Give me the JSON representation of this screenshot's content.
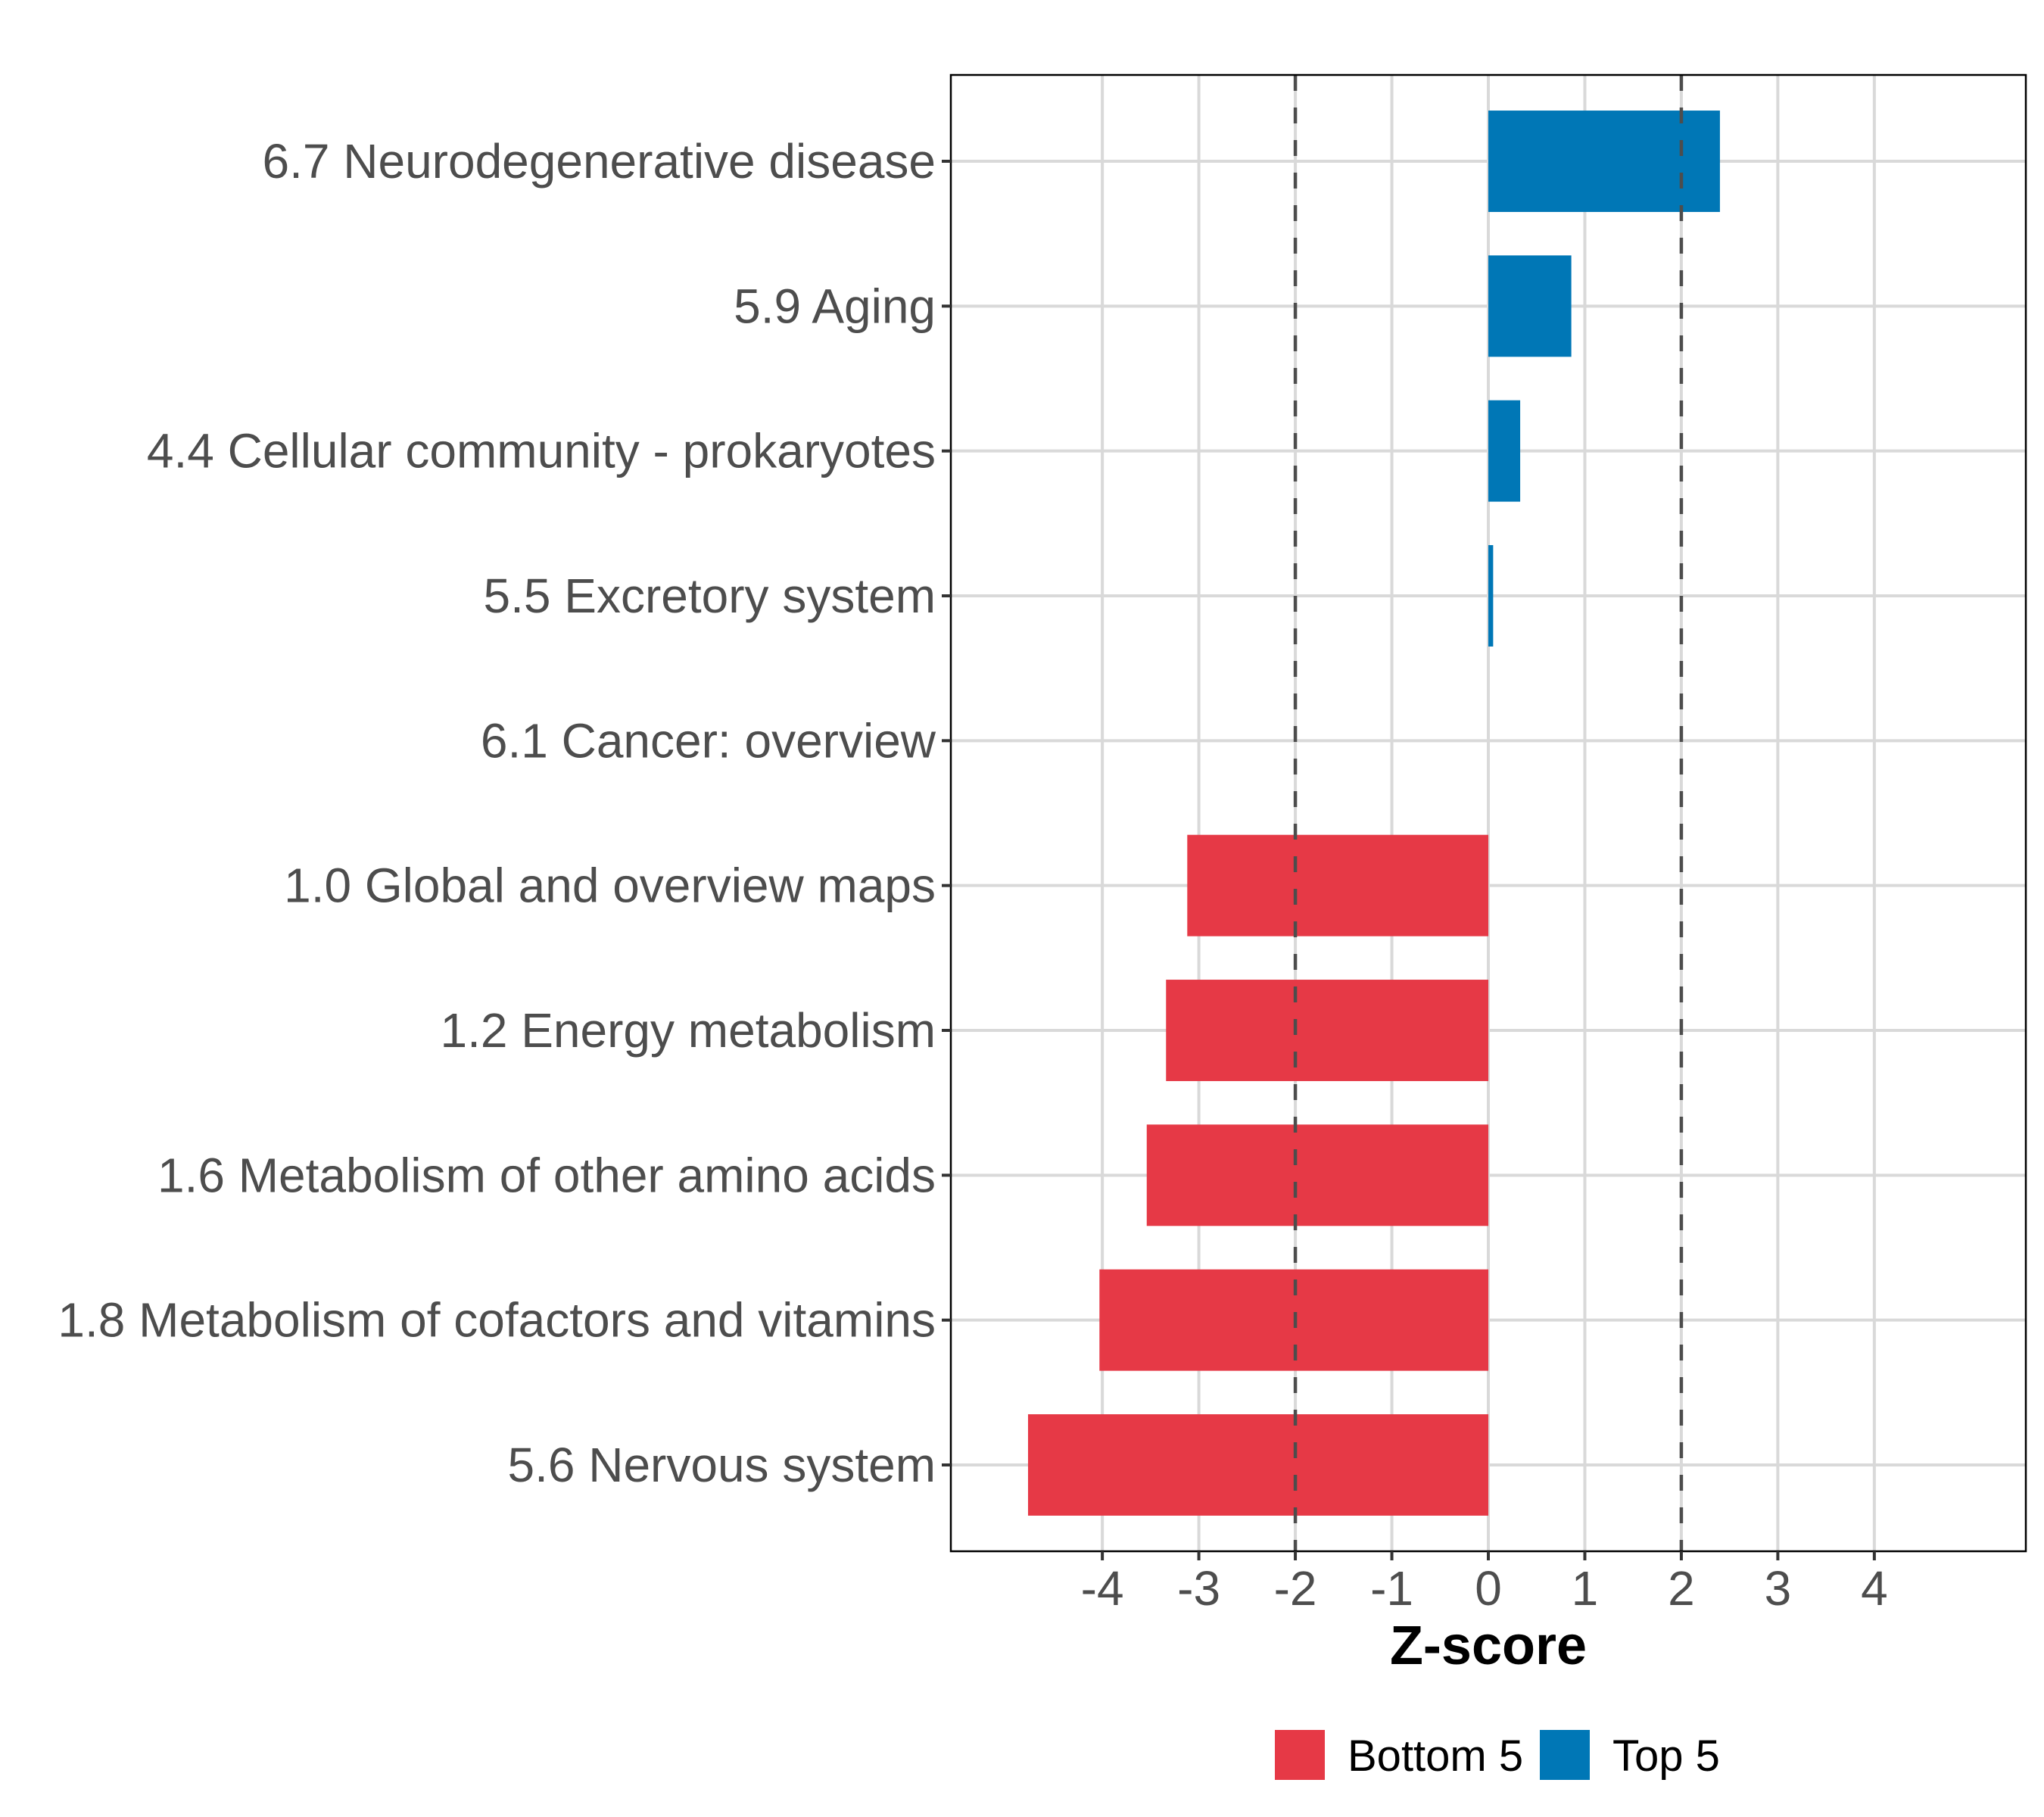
{
  "chart_data": {
    "type": "bar",
    "orientation": "horizontal",
    "title": "",
    "xlabel": "Z-score",
    "ylabel": "",
    "xlim": [
      -5.57,
      5.57
    ],
    "x_ticks": [
      -4,
      -3,
      -2,
      -1,
      0,
      1,
      2,
      3,
      4
    ],
    "x_tick_labels": [
      "-4",
      "-3",
      "-2",
      "-1",
      "0",
      "1",
      "2",
      "3",
      "4"
    ],
    "grid": true,
    "reference_lines": [
      {
        "x": -2,
        "style": "dashed"
      },
      {
        "x": 2,
        "style": "dashed"
      }
    ],
    "categories": [
      "6.7 Neurodegenerative disease",
      "5.9 Aging",
      "4.4 Cellular community - prokaryotes",
      "5.5 Excretory system",
      "6.1 Cancer: overview",
      "1.0 Global and overview maps",
      "1.2 Energy metabolism",
      "1.6 Metabolism of other amino acids",
      "1.8 Metabolism of cofactors and vitamins",
      "5.6 Nervous system"
    ],
    "values": [
      2.4,
      0.86,
      0.33,
      0.05,
      0.0,
      -3.12,
      -3.34,
      -3.54,
      -4.03,
      -4.77
    ],
    "groups": [
      "Top 5",
      "Top 5",
      "Top 5",
      "Top 5",
      "Top 5",
      "Bottom 5",
      "Bottom 5",
      "Bottom 5",
      "Bottom 5",
      "Bottom 5"
    ],
    "legend": {
      "placement": "bottom",
      "entries": [
        {
          "label": "Bottom 5",
          "color": "#E63946"
        },
        {
          "label": "Top 5",
          "color": "#0077B6"
        }
      ]
    },
    "colors": {
      "Top 5": "#0077B6",
      "Bottom 5": "#E63946",
      "grid": "#d9d9d9",
      "reference_line": "#4d4d4d",
      "axis_text": "#4d4d4d"
    }
  }
}
